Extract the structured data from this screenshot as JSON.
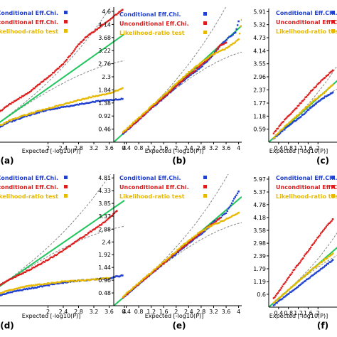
{
  "chart_data": [
    {
      "type": "scatter",
      "panel_label": "(a)",
      "xlabel": "Expected [-log10(P)]",
      "x_ticks": [
        "2",
        "2.4",
        "2.8",
        "3.2",
        "3.6",
        "4"
      ],
      "y_ticks": [],
      "xlim": [
        0,
        4.0
      ],
      "ylim": [
        0,
        5.0
      ],
      "legend_position": "top-right",
      "series": [
        {
          "name": "Conditional Eff.Chi.",
          "color": "#1f3fcf",
          "values": [
            [
              0.5,
              0.4
            ],
            [
              1.0,
              0.75
            ],
            [
              1.5,
              1.0
            ],
            [
              2.0,
              1.2
            ],
            [
              2.4,
              1.3
            ],
            [
              2.8,
              1.4
            ],
            [
              3.2,
              1.5
            ],
            [
              3.6,
              1.55
            ],
            [
              3.95,
              1.6
            ]
          ]
        },
        {
          "name": "Unconditional Eff.Chi.",
          "color": "#dd1c1c",
          "values": [
            [
              0.5,
              0.9
            ],
            [
              1.0,
              1.4
            ],
            [
              1.5,
              1.85
            ],
            [
              2.0,
              2.4
            ],
            [
              2.4,
              2.9
            ],
            [
              2.8,
              3.6
            ],
            [
              3.0,
              3.9
            ],
            [
              3.2,
              4.1
            ],
            [
              3.95,
              4.9
            ]
          ]
        },
        {
          "name": "Likelihood-ratio test",
          "color": "#e6b800",
          "values": [
            [
              0.5,
              0.45
            ],
            [
              1.0,
              0.8
            ],
            [
              1.5,
              1.05
            ],
            [
              2.0,
              1.25
            ],
            [
              2.4,
              1.4
            ],
            [
              2.8,
              1.55
            ],
            [
              3.2,
              1.7
            ],
            [
              3.6,
              1.8
            ],
            [
              3.95,
              2.0
            ]
          ]
        }
      ]
    },
    {
      "type": "scatter",
      "panel_label": "(b)",
      "xlabel": "Expected [-log10(P)]",
      "x_ticks": [
        "0.4",
        "0.8",
        "1.2",
        "1.6",
        "2",
        "2.4",
        "2.8",
        "3.2",
        "3.6",
        "4"
      ],
      "y_ticks": [
        "0.46",
        "0.92",
        "1.38",
        "1.84",
        "2.3",
        "2.76",
        "3.22",
        "3.68",
        "4.14",
        "4.6"
      ],
      "xlim": [
        0,
        4.1
      ],
      "ylim": [
        0,
        4.75
      ],
      "legend_position": "top-left",
      "series": [
        {
          "name": "Conditional Eff.Chi.",
          "color": "#1f3fcf",
          "values": [
            [
              0.3,
              0.3
            ],
            [
              0.8,
              0.78
            ],
            [
              1.2,
              1.18
            ],
            [
              1.6,
              1.55
            ],
            [
              2.0,
              1.95
            ],
            [
              2.4,
              2.3
            ],
            [
              2.8,
              2.65
            ],
            [
              3.0,
              2.85
            ],
            [
              3.2,
              3.1
            ],
            [
              3.5,
              3.5
            ],
            [
              3.7,
              3.7
            ],
            [
              3.9,
              3.85
            ],
            [
              4.0,
              4.25
            ]
          ]
        },
        {
          "name": "Unconditional Eff.Chi.",
          "color": "#dd1c1c",
          "values": [
            [
              0.3,
              0.32
            ],
            [
              0.8,
              0.8
            ],
            [
              1.2,
              1.2
            ],
            [
              1.6,
              1.58
            ],
            [
              2.0,
              1.98
            ],
            [
              2.4,
              2.35
            ],
            [
              2.8,
              2.7
            ],
            [
              3.0,
              2.9
            ],
            [
              3.2,
              3.1
            ],
            [
              3.4,
              3.4
            ],
            [
              3.6,
              3.5
            ]
          ]
        },
        {
          "name": "Likelihood-ratio test",
          "color": "#e6b800",
          "values": [
            [
              0.3,
              0.35
            ],
            [
              0.8,
              0.85
            ],
            [
              1.2,
              1.25
            ],
            [
              1.6,
              1.65
            ],
            [
              2.0,
              2.05
            ],
            [
              2.4,
              2.45
            ],
            [
              2.8,
              2.8
            ],
            [
              3.2,
              3.1
            ],
            [
              3.6,
              3.3
            ],
            [
              4.0,
              3.6
            ],
            [
              4.1,
              4.3
            ]
          ]
        }
      ]
    },
    {
      "type": "scatter",
      "panel_label": "(c)",
      "xlabel": "Expected [-log10(P)]",
      "x_ticks": [
        "0.4",
        "0.8",
        "1.2",
        "1.6",
        "2"
      ],
      "y_ticks": [
        "0.59",
        "1.18",
        "1.77",
        "2.37",
        "2.96",
        "3.55",
        "4.14",
        "4.73",
        "5.32",
        "5.91"
      ],
      "xlim": [
        0,
        4.1
      ],
      "ylim": [
        0,
        6.05
      ],
      "legend_position": "top-left",
      "series": [
        {
          "name": "Conditional Eff.Chi.",
          "color": "#1f3fcf",
          "values": [
            [
              0.2,
              0.15
            ],
            [
              0.6,
              0.55
            ],
            [
              1.0,
              0.9
            ],
            [
              1.4,
              1.25
            ],
            [
              1.8,
              1.65
            ],
            [
              2.2,
              2.0
            ],
            [
              2.6,
              2.25
            ]
          ]
        },
        {
          "name": "Unconditional Eff.Chi.",
          "color": "#dd1c1c",
          "values": [
            [
              0.2,
              0.4
            ],
            [
              0.6,
              0.95
            ],
            [
              1.0,
              1.4
            ],
            [
              1.4,
              1.9
            ],
            [
              1.8,
              2.4
            ],
            [
              2.2,
              2.85
            ],
            [
              2.6,
              3.25
            ]
          ]
        },
        {
          "name": "Likelihood-ratio test",
          "color": "#e6b800",
          "values": [
            [
              0.2,
              0.2
            ],
            [
              0.6,
              0.65
            ],
            [
              1.0,
              1.05
            ],
            [
              1.4,
              1.45
            ],
            [
              1.8,
              1.85
            ],
            [
              2.2,
              2.2
            ],
            [
              2.6,
              2.6
            ]
          ]
        }
      ]
    },
    {
      "type": "scatter",
      "panel_label": "(d)",
      "xlabel": "Expected [-log10(P)]",
      "x_ticks": [
        "2",
        "2.4",
        "2.8",
        "3.2",
        "3.6",
        "4"
      ],
      "y_ticks": [],
      "xlim": [
        0,
        4.0
      ],
      "ylim": [
        0,
        5.0
      ],
      "legend_position": "top-right",
      "series": [
        {
          "name": "Conditional Eff.Chi.",
          "color": "#1f3fcf",
          "values": [
            [
              0.5,
              0.3
            ],
            [
              1.0,
              0.5
            ],
            [
              1.5,
              0.65
            ],
            [
              2.0,
              0.78
            ],
            [
              2.4,
              0.88
            ],
            [
              2.8,
              0.95
            ],
            [
              3.2,
              1.0
            ],
            [
              3.6,
              1.05
            ],
            [
              3.95,
              1.15
            ]
          ]
        },
        {
          "name": "Unconditional Eff.Chi.",
          "color": "#dd1c1c",
          "values": [
            [
              0.5,
              0.6
            ],
            [
              1.0,
              1.0
            ],
            [
              1.5,
              1.35
            ],
            [
              2.0,
              1.75
            ],
            [
              2.4,
              2.1
            ],
            [
              2.8,
              2.5
            ],
            [
              3.2,
              2.9
            ],
            [
              3.5,
              3.2
            ],
            [
              3.8,
              3.6
            ]
          ]
        },
        {
          "name": "Likelihood-ratio test",
          "color": "#e6b800",
          "values": [
            [
              0.5,
              0.35
            ],
            [
              1.0,
              0.6
            ],
            [
              1.5,
              0.75
            ],
            [
              2.0,
              0.85
            ],
            [
              2.4,
              0.92
            ],
            [
              2.8,
              0.95
            ],
            [
              3.2,
              1.0
            ],
            [
              3.6,
              1.05
            ]
          ]
        }
      ]
    },
    {
      "type": "scatter",
      "panel_label": "(e)",
      "xlabel": "Expected [-log10(P)]",
      "x_ticks": [
        "0.4",
        "0.8",
        "1.2",
        "1.6",
        "2",
        "2.4",
        "2.8",
        "3.2",
        "3.6",
        "4"
      ],
      "y_ticks": [
        "0.48",
        "0.96",
        "1.44",
        "1.92",
        "2.4",
        "2.88",
        "3.37",
        "3.85",
        "4.33",
        "4.81"
      ],
      "xlim": [
        0,
        4.1
      ],
      "ylim": [
        0,
        4.95
      ],
      "legend_position": "top-left",
      "series": [
        {
          "name": "Conditional Eff.Chi.",
          "color": "#1f3fcf",
          "values": [
            [
              0.3,
              0.3
            ],
            [
              0.8,
              0.8
            ],
            [
              1.2,
              1.2
            ],
            [
              1.6,
              1.6
            ],
            [
              2.0,
              1.95
            ],
            [
              2.4,
              2.35
            ],
            [
              2.8,
              2.7
            ],
            [
              3.0,
              2.9
            ],
            [
              3.2,
              3.15
            ],
            [
              3.4,
              3.3
            ],
            [
              3.6,
              3.5
            ],
            [
              4.0,
              4.3
            ]
          ]
        },
        {
          "name": "Unconditional Eff.Chi.",
          "color": "#dd1c1c",
          "values": [
            [
              0.3,
              0.32
            ],
            [
              0.8,
              0.82
            ],
            [
              1.2,
              1.22
            ],
            [
              1.6,
              1.6
            ],
            [
              2.0,
              2.0
            ],
            [
              2.4,
              2.38
            ],
            [
              2.8,
              2.75
            ],
            [
              3.0,
              2.95
            ],
            [
              3.2,
              3.1
            ],
            [
              3.4,
              3.3
            ]
          ]
        },
        {
          "name": "Likelihood-ratio test",
          "color": "#e6b800",
          "values": [
            [
              0.3,
              0.35
            ],
            [
              0.8,
              0.85
            ],
            [
              1.2,
              1.25
            ],
            [
              1.6,
              1.65
            ],
            [
              2.0,
              2.05
            ],
            [
              2.4,
              2.45
            ],
            [
              2.8,
              2.8
            ],
            [
              3.2,
              3.05
            ],
            [
              3.6,
              3.25
            ],
            [
              4.0,
              3.5
            ]
          ]
        }
      ]
    },
    {
      "type": "scatter",
      "panel_label": "(f)",
      "xlabel": "Expected [-log10(P)]",
      "x_ticks": [
        "0.4",
        "0.8",
        "1.2",
        "1.6",
        "2"
      ],
      "y_ticks": [
        "0.6",
        "1.19",
        "1.79",
        "2.39",
        "2.98",
        "3.58",
        "4.18",
        "4.78",
        "5.37",
        "5.97"
      ],
      "xlim": [
        0,
        4.1
      ],
      "ylim": [
        0,
        6.1
      ],
      "legend_position": "top-left",
      "series": [
        {
          "name": "Conditional Eff.Chi.",
          "color": "#1f3fcf",
          "values": [
            [
              0.2,
              0.1
            ],
            [
              0.6,
              0.45
            ],
            [
              1.0,
              0.8
            ],
            [
              1.4,
              1.15
            ],
            [
              1.8,
              1.5
            ],
            [
              2.2,
              1.85
            ],
            [
              2.6,
              2.2
            ]
          ]
        },
        {
          "name": "Unconditional Eff.Chi.",
          "color": "#dd1c1c",
          "values": [
            [
              0.2,
              0.4
            ],
            [
              0.6,
              1.05
            ],
            [
              1.0,
              1.7
            ],
            [
              1.4,
              2.3
            ],
            [
              1.8,
              2.95
            ],
            [
              2.2,
              3.55
            ],
            [
              2.6,
              4.1
            ]
          ]
        },
        {
          "name": "Likelihood-ratio test",
          "color": "#e6b800",
          "values": [
            [
              0.2,
              0.2
            ],
            [
              0.6,
              0.6
            ],
            [
              1.0,
              1.0
            ],
            [
              1.4,
              1.4
            ],
            [
              1.8,
              1.8
            ],
            [
              2.2,
              2.15
            ],
            [
              2.6,
              2.5
            ]
          ]
        }
      ]
    }
  ]
}
